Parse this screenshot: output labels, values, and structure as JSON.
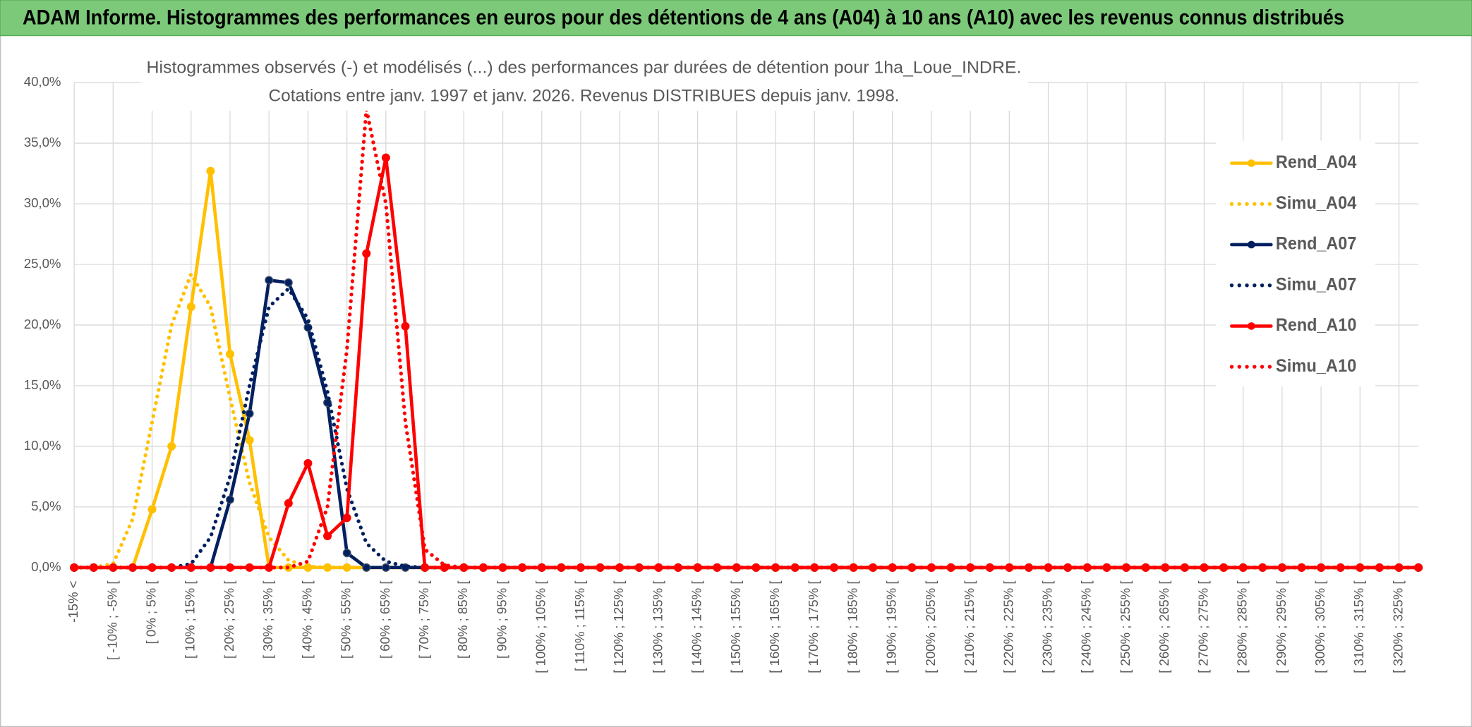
{
  "chart_data": {
    "type": "line",
    "header": "ADAM Informe. Histogrammes des performances en euros pour des détentions de 4 ans (A04) à 10 ans (A10) avec les revenus connus distribués",
    "title": [
      "Histogrammes observés (-) et modélisés (...) des performances par durées de détention pour 1ha_Loue_INDRE.",
      "Cotations entre janv. 1997 et janv. 2026. Revenus DISTRIBUES depuis janv. 1998."
    ],
    "categories": [
      "-15% <",
      null,
      "[ -10% ; -5% [",
      null,
      "[ 0% ; 5% [",
      null,
      "[ 10% ; 15% [",
      null,
      "[ 20% ; 25% [",
      null,
      "[ 30% ; 35% [",
      null,
      "[ 40% ; 45% [",
      null,
      "[ 50% ; 55% [",
      null,
      "[ 60% ; 65% [",
      null,
      "[ 70% ; 75% [",
      null,
      "[ 80% ; 85% [",
      null,
      "[ 90% ; 95% [",
      null,
      "[ 100% ; 105% [",
      null,
      "[ 110% ; 115% [",
      null,
      "[ 120% ; 125% [",
      null,
      "[ 130% ; 135% [",
      null,
      "[ 140% ; 145% [",
      null,
      "[ 150% ; 155% [",
      null,
      "[ 160% ; 165% [",
      null,
      "[ 170% ; 175% [",
      null,
      "[ 180% ; 185% [",
      null,
      "[ 190% ; 195% [",
      null,
      "[ 200% ; 205% [",
      null,
      "[ 210% ; 215% [",
      null,
      "[ 220% ; 225% [",
      null,
      "[ 230% ; 235% [",
      null,
      "[ 240% ; 245% [",
      null,
      "[ 250% ; 255% [",
      null,
      "[ 260% ; 265% [",
      null,
      "[ 270% ; 275% [",
      null,
      "[ 280% ; 285% [",
      null,
      "[ 290% ; 295% [",
      null,
      "[ 300% ; 305% [",
      null,
      "[ 310% ; 315% [",
      null,
      "[ 320% ; 325% [",
      null
    ],
    "series": [
      {
        "name": "Rend_A04",
        "color": "#ffc000",
        "dash": "solid",
        "markers": true,
        "values": [
          0,
          0,
          0,
          0,
          4.8,
          10.0,
          21.5,
          32.7,
          17.6,
          10.5,
          0,
          0,
          0,
          0,
          0,
          0,
          0,
          0,
          0,
          0,
          0,
          0,
          0,
          0,
          0,
          0,
          0,
          0,
          0,
          0,
          0,
          0,
          0,
          0,
          0,
          0,
          0,
          0,
          0,
          0,
          0,
          0,
          0,
          0,
          0,
          0,
          0,
          0,
          0,
          0,
          0,
          0,
          0,
          0,
          0,
          0,
          0,
          0,
          0,
          0,
          0,
          0,
          0,
          0,
          0,
          0,
          0,
          0,
          0,
          0
        ]
      },
      {
        "name": "Simu_A04",
        "color": "#ffc000",
        "dash": "dotted",
        "markers": false,
        "values": [
          0,
          0,
          0.3,
          4,
          12,
          20,
          24.2,
          21.5,
          14,
          7,
          2.5,
          0.6,
          0.1,
          0,
          0,
          0,
          0,
          0,
          0,
          0,
          0,
          0,
          0,
          0,
          0,
          0,
          0,
          0,
          0,
          0,
          0,
          0,
          0,
          0,
          0,
          0,
          0,
          0,
          0,
          0,
          0,
          0,
          0,
          0,
          0,
          0,
          0,
          0,
          0,
          0,
          0,
          0,
          0,
          0,
          0,
          0,
          0,
          0,
          0,
          0,
          0,
          0,
          0,
          0,
          0,
          0,
          0,
          0,
          0,
          0
        ]
      },
      {
        "name": "Rend_A07",
        "color": "#002060",
        "dash": "solid",
        "markers": true,
        "values": [
          0,
          0,
          0,
          0,
          0,
          0,
          0,
          0,
          5.6,
          12.7,
          23.7,
          23.5,
          19.8,
          13.6,
          1.2,
          0,
          0,
          0,
          0,
          0,
          0,
          0,
          0,
          0,
          0,
          0,
          0,
          0,
          0,
          0,
          0,
          0,
          0,
          0,
          0,
          0,
          0,
          0,
          0,
          0,
          0,
          0,
          0,
          0,
          0,
          0,
          0,
          0,
          0,
          0,
          0,
          0,
          0,
          0,
          0,
          0,
          0,
          0,
          0,
          0,
          0,
          0,
          0,
          0,
          0,
          0,
          0,
          0,
          0,
          0
        ]
      },
      {
        "name": "Simu_A07",
        "color": "#002060",
        "dash": "dotted",
        "markers": false,
        "values": [
          0,
          0,
          0,
          0,
          0,
          0,
          0.3,
          2.5,
          7.5,
          15,
          21.5,
          23,
          20.5,
          14.5,
          6.5,
          2,
          0.5,
          0.1,
          0,
          0,
          0,
          0,
          0,
          0,
          0,
          0,
          0,
          0,
          0,
          0,
          0,
          0,
          0,
          0,
          0,
          0,
          0,
          0,
          0,
          0,
          0,
          0,
          0,
          0,
          0,
          0,
          0,
          0,
          0,
          0,
          0,
          0,
          0,
          0,
          0,
          0,
          0,
          0,
          0,
          0,
          0,
          0,
          0,
          0,
          0,
          0,
          0,
          0,
          0,
          0
        ]
      },
      {
        "name": "Rend_A10",
        "color": "#ff0000",
        "dash": "solid",
        "markers": true,
        "values": [
          0,
          0,
          0,
          0,
          0,
          0,
          0,
          0,
          0,
          0,
          0,
          5.3,
          8.6,
          2.6,
          4.1,
          25.9,
          33.8,
          19.9,
          0,
          0,
          0,
          0,
          0,
          0,
          0,
          0,
          0,
          0,
          0,
          0,
          0,
          0,
          0,
          0,
          0,
          0,
          0,
          0,
          0,
          0,
          0,
          0,
          0,
          0,
          0,
          0,
          0,
          0,
          0,
          0,
          0,
          0,
          0,
          0,
          0,
          0,
          0,
          0,
          0,
          0,
          0,
          0,
          0,
          0,
          0,
          0,
          0,
          0,
          0,
          0
        ]
      },
      {
        "name": "Simu_A10",
        "color": "#ff0000",
        "dash": "dotted",
        "markers": false,
        "values": [
          0,
          0,
          0,
          0,
          0,
          0,
          0,
          0,
          0,
          0,
          0,
          0,
          0.5,
          5,
          18,
          37.8,
          30,
          12,
          1.5,
          0.2,
          0,
          0,
          0,
          0,
          0,
          0,
          0,
          0,
          0,
          0,
          0,
          0,
          0,
          0,
          0,
          0,
          0,
          0,
          0,
          0,
          0,
          0,
          0,
          0,
          0,
          0,
          0,
          0,
          0,
          0,
          0,
          0,
          0,
          0,
          0,
          0,
          0,
          0,
          0,
          0,
          0,
          0,
          0,
          0,
          0,
          0,
          0,
          0,
          0,
          0
        ]
      }
    ],
    "ylim": [
      0,
      40
    ],
    "yticks": [
      {
        "value": 0,
        "label": "0,0%"
      },
      {
        "value": 5,
        "label": "5,0%"
      },
      {
        "value": 10,
        "label": "10,0%"
      },
      {
        "value": 15,
        "label": "15,0%"
      },
      {
        "value": 20,
        "label": "20,0%"
      },
      {
        "value": 25,
        "label": "25,0%"
      },
      {
        "value": 30,
        "label": "30,0%"
      },
      {
        "value": 35,
        "label": "35,0%"
      },
      {
        "value": 40,
        "label": "40,0%"
      }
    ],
    "grid": true,
    "legend": "right"
  }
}
